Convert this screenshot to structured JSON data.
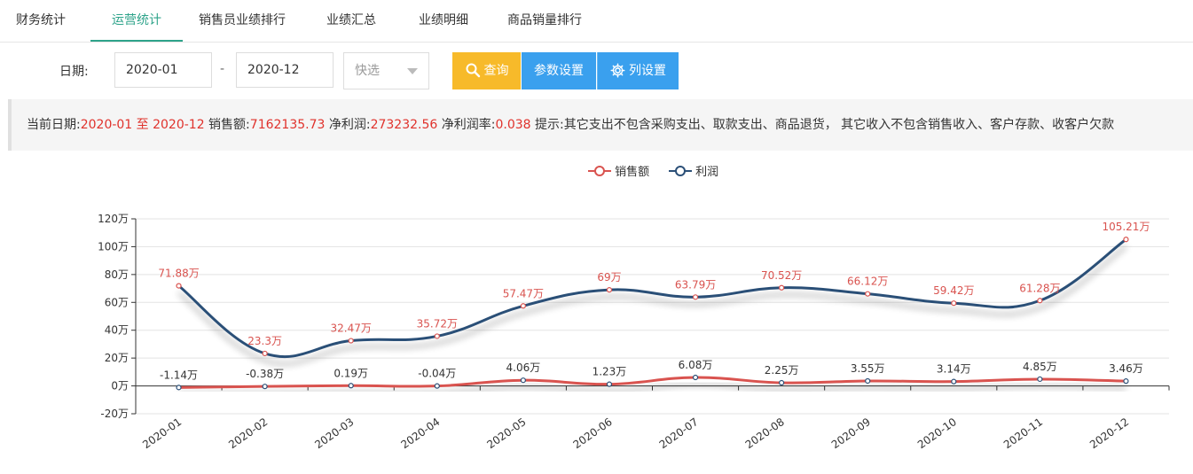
{
  "tabs": [
    {
      "label": "财务统计",
      "active": false
    },
    {
      "label": "运营统计",
      "active": true
    },
    {
      "label": "销售员业绩排行",
      "active": false
    },
    {
      "label": "业绩汇总",
      "active": false
    },
    {
      "label": "业绩明细",
      "active": false
    },
    {
      "label": "商品销量排行",
      "active": false
    }
  ],
  "filter": {
    "date_label": "日期:",
    "start": "2020-01",
    "separator": "-",
    "end": "2020-12",
    "quick_select": "快选",
    "query_button": "查询",
    "params_button": "参数设置",
    "columns_button": "列设置"
  },
  "info": {
    "date_prefix": "当前日期:",
    "date_range": "2020-01 至 2020-12",
    "sales_label": " 销售额:",
    "sales_value": "7162135.73",
    "profit_label": " 净利润:",
    "profit_value": "273232.56",
    "rate_label": " 净利润率:",
    "rate_value": "0.038",
    "tip": " 提示:其它支出不包含采购支出、取款支出、商品退货， 其它收入不包含销售收入、客户存款、收客户欠款"
  },
  "colors": {
    "accent": "#2ea38a",
    "query": "#f7ba2a",
    "blue_btn": "#3aa0ee",
    "sales": "#d9534f",
    "profit": "#2b4f77"
  },
  "chart_data": {
    "type": "line",
    "categories": [
      "2020-01",
      "2020-02",
      "2020-03",
      "2020-04",
      "2020-05",
      "2020-06",
      "2020-07",
      "2020-08",
      "2020-09",
      "2020-10",
      "2020-11",
      "2020-12"
    ],
    "y_ticks": [
      "120万",
      "100万",
      "80万",
      "60万",
      "40万",
      "20万",
      "0万",
      "-20万"
    ],
    "ylim": [
      -20,
      120
    ],
    "legend_position": "top-center",
    "grid": true,
    "series": [
      {
        "name": "销售额",
        "color": "#d9534f",
        "values": [
          71.88,
          23.3,
          32.47,
          35.72,
          57.47,
          69,
          63.79,
          70.52,
          66.12,
          59.42,
          61.28,
          105.21
        ],
        "labels": [
          "71.88万",
          "23.3万",
          "32.47万",
          "35.72万",
          "57.47万",
          "69万",
          "63.79万",
          "70.52万",
          "66.12万",
          "59.42万",
          "61.28万",
          "105.21万"
        ]
      },
      {
        "name": "利润",
        "color": "#2b4f77",
        "values": [
          -1.14,
          -0.38,
          0.19,
          -0.04,
          4.06,
          1.23,
          6.08,
          2.25,
          3.55,
          3.14,
          4.85,
          3.46
        ],
        "labels": [
          "-1.14万",
          "-0.38万",
          "0.19万",
          "-0.04万",
          "4.06万",
          "1.23万",
          "6.08万",
          "2.25万",
          "3.55万",
          "3.14万",
          "4.85万",
          "3.46万"
        ]
      }
    ]
  }
}
